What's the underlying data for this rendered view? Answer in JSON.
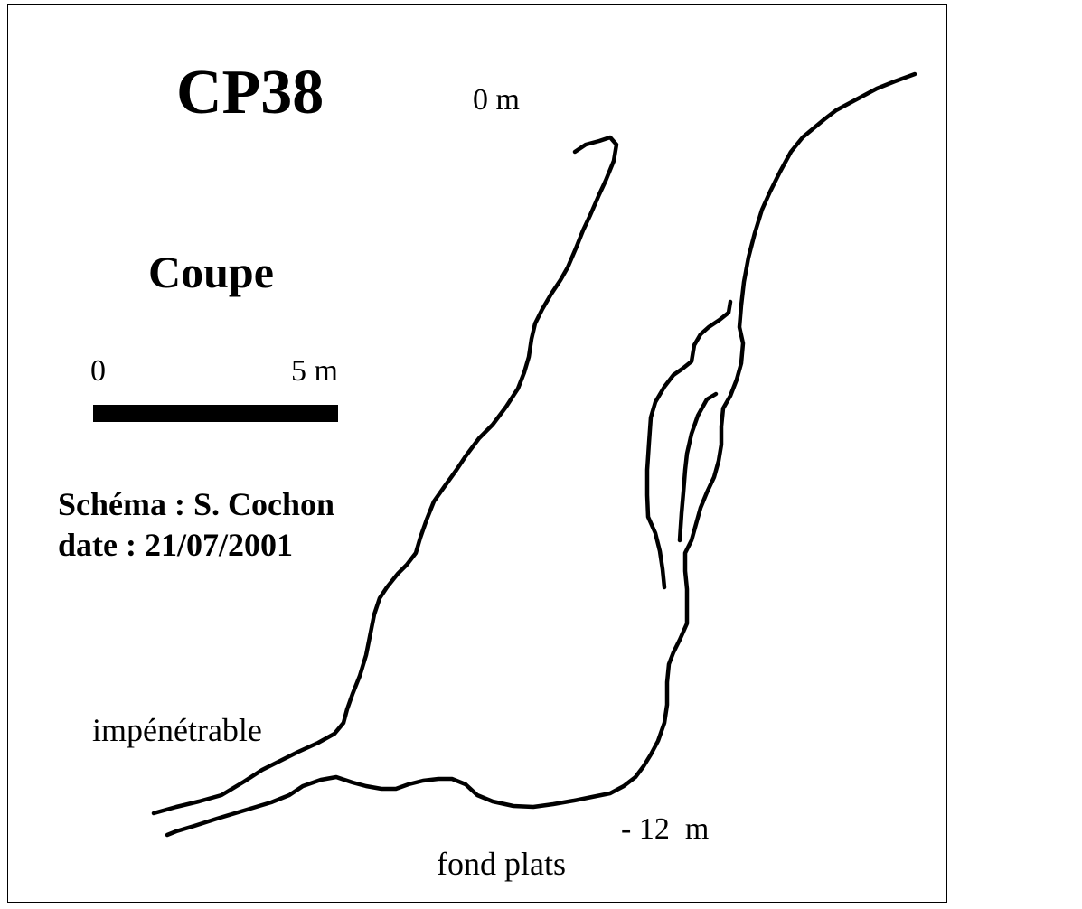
{
  "diagram": {
    "title": "CP38",
    "subtitle": "Coupe",
    "scale": {
      "start_label": "0",
      "end_label": "5 m"
    },
    "credit": {
      "author_line": "Schéma : S. Cochon",
      "date_line": "date : 21/07/2001"
    },
    "depth_labels": {
      "top": "0 m",
      "bottom": "- 12  m"
    },
    "annotations": {
      "impenetrable": "impénétrable",
      "bottom_note": "fond plats"
    }
  }
}
